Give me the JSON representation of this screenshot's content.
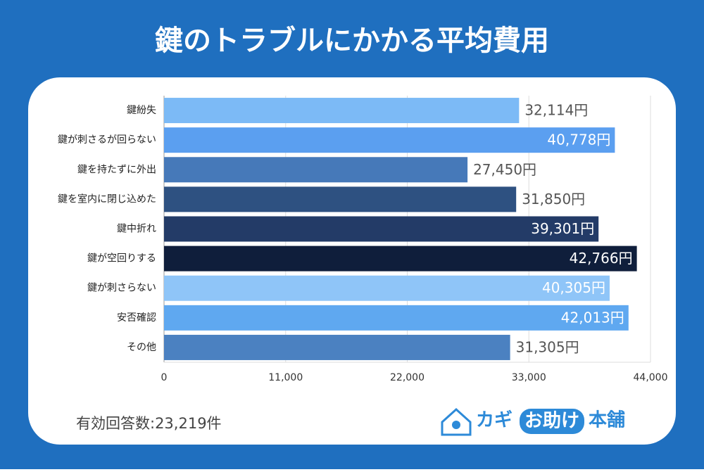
{
  "chart_data": {
    "type": "barh",
    "title": "鍵のトラブルにかかる平均費用",
    "categories": [
      "鍵紛失",
      "鍵が刺さるが回らない",
      "鍵を持たずに外出",
      "鍵を室内に閉じ込めた",
      "鍵中折れ",
      "鍵が空回りする",
      "鍵が刺さらない",
      "安否確認",
      "その他"
    ],
    "values": [
      32114,
      40778,
      27450,
      31850,
      39301,
      42766,
      40305,
      42013,
      31305
    ],
    "value_labels": [
      "32,114円",
      "40,778円",
      "27,450円",
      "31,850円",
      "39,301円",
      "42,766円",
      "40,305円",
      "42,013円",
      "31,305円"
    ],
    "colors": [
      "#7cbaf6",
      "#5b9ff0",
      "#4679b9",
      "#2e5181",
      "#233b67",
      "#0f1e3b",
      "#8fc5f8",
      "#5fa8f0",
      "#4b81c1"
    ],
    "xlim": [
      0,
      44000
    ],
    "xticks": [
      0,
      {
        "value": 11000,
        "label": "11,000"
      },
      {
        "value": 22000,
        "label": "22,000"
      },
      {
        "value": 33000,
        "label": "33,000"
      },
      {
        "value": 44000,
        "label": "44,000"
      }
    ],
    "grid": true
  },
  "footer": {
    "note": "有効回答数:23,219件",
    "logo_1": "カギ",
    "logo_2": "お助け",
    "logo_3": "本舗"
  }
}
